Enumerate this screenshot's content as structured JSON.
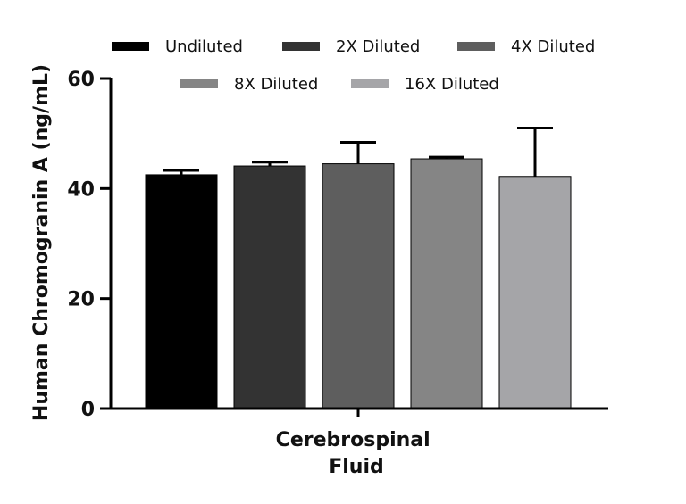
{
  "chart_data": {
    "type": "bar",
    "ylabel": "Human Chromogranin A (ng/mL)",
    "xlabel_lines": [
      "Cerebrospinal",
      "Fluid"
    ],
    "ylim": [
      0,
      60
    ],
    "yticks": [
      0,
      20,
      40,
      60
    ],
    "legend_position": "top",
    "series": [
      {
        "name": "Undiluted",
        "value": 42.5,
        "error": 0.8,
        "color": "#000000"
      },
      {
        "name": "2X Diluted",
        "value": 44.1,
        "error": 0.7,
        "color": "#333333"
      },
      {
        "name": "4X Diluted",
        "value": 44.5,
        "error": 3.9,
        "color": "#5e5e5e"
      },
      {
        "name": "8X Diluted",
        "value": 45.4,
        "error": 0.3,
        "color": "#858585"
      },
      {
        "name": "16X Diluted",
        "value": 42.2,
        "error": 8.8,
        "color": "#a5a5a8"
      }
    ]
  }
}
